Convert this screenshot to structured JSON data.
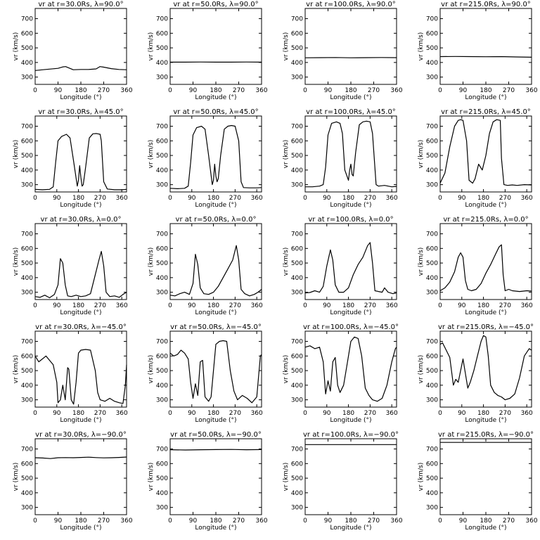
{
  "chart_data": [
    {
      "type": "line",
      "title": "vr at r=30.0Rs, λ=90.0°",
      "xlabel": "Longitude (°)",
      "ylabel": "vr (km/s)",
      "xlim": [
        0,
        360
      ],
      "ylim": [
        250,
        770
      ],
      "xticks": [
        0,
        90,
        180,
        270,
        360
      ],
      "yticks": [
        300,
        400,
        500,
        600,
        700
      ],
      "x": [
        0,
        30,
        60,
        90,
        110,
        120,
        150,
        180,
        210,
        240,
        255,
        270,
        300,
        330,
        360
      ],
      "y": [
        345,
        350,
        355,
        360,
        370,
        372,
        350,
        352,
        352,
        356,
        372,
        368,
        358,
        352,
        350
      ]
    },
    {
      "type": "line",
      "title": "vr at r=50.0Rs, λ=90.0°",
      "xlabel": "Longitude (°)",
      "ylabel": "vr (km/s)",
      "xlim": [
        0,
        360
      ],
      "ylim": [
        250,
        770
      ],
      "xticks": [
        0,
        90,
        180,
        270,
        360
      ],
      "yticks": [
        300,
        400,
        500,
        600,
        700
      ],
      "x": [
        0,
        60,
        120,
        180,
        240,
        300,
        360
      ],
      "y": [
        402,
        402,
        403,
        402,
        402,
        403,
        402
      ]
    },
    {
      "type": "line",
      "title": "vr at r=100.0Rs, λ=90.0°",
      "xlabel": "Longitude (°)",
      "ylabel": "vr (km/s)",
      "xlim": [
        0,
        360
      ],
      "ylim": [
        250,
        770
      ],
      "xticks": [
        0,
        90,
        180,
        270,
        360
      ],
      "yticks": [
        300,
        400,
        500,
        600,
        700
      ],
      "x": [
        0,
        60,
        120,
        180,
        240,
        300,
        360
      ],
      "y": [
        432,
        433,
        434,
        432,
        433,
        434,
        433
      ]
    },
    {
      "type": "line",
      "title": "vr at r=215.0Rs, λ=90.0°",
      "xlabel": "Longitude (°)",
      "ylabel": "vr (km/s)",
      "xlim": [
        0,
        360
      ],
      "ylim": [
        250,
        770
      ],
      "xticks": [
        0,
        90,
        180,
        270,
        360
      ],
      "yticks": [
        300,
        400,
        500,
        600,
        700
      ],
      "x": [
        0,
        60,
        120,
        180,
        240,
        300,
        360
      ],
      "y": [
        440,
        441,
        440,
        439,
        440,
        438,
        436
      ]
    },
    {
      "type": "line",
      "title": "vr at r=30.0Rs, λ=45.0°",
      "xlabel": "Longitude (°)",
      "ylabel": "vr (km/s)",
      "xlim": [
        0,
        380
      ],
      "ylim": [
        250,
        770
      ],
      "xticks": [
        0,
        90,
        180,
        270,
        360
      ],
      "yticks": [
        300,
        400,
        500,
        600,
        700
      ],
      "x": [
        0,
        30,
        60,
        75,
        85,
        95,
        110,
        130,
        145,
        160,
        175,
        180,
        185,
        190,
        195,
        200,
        210,
        225,
        240,
        255,
        270,
        275,
        285,
        300,
        330,
        360,
        380
      ],
      "y": [
        268,
        265,
        268,
        285,
        450,
        600,
        630,
        645,
        620,
        460,
        290,
        330,
        430,
        350,
        290,
        300,
        420,
        620,
        648,
        650,
        645,
        600,
        320,
        270,
        265,
        265,
        268
      ]
    },
    {
      "type": "line",
      "title": "vr at r=50.0Rs, λ=45.0°",
      "xlabel": "Longitude (°)",
      "ylabel": "vr (km/s)",
      "xlim": [
        0,
        380
      ],
      "ylim": [
        250,
        770
      ],
      "xticks": [
        0,
        90,
        180,
        270,
        360
      ],
      "yticks": [
        300,
        400,
        500,
        600,
        700
      ],
      "x": [
        0,
        30,
        60,
        75,
        85,
        95,
        110,
        130,
        145,
        160,
        175,
        180,
        185,
        190,
        195,
        200,
        210,
        225,
        240,
        255,
        270,
        285,
        295,
        305,
        330,
        360,
        380
      ],
      "y": [
        275,
        272,
        275,
        290,
        450,
        640,
        690,
        700,
        680,
        500,
        300,
        330,
        440,
        360,
        320,
        340,
        500,
        680,
        700,
        705,
        700,
        600,
        320,
        280,
        278,
        278,
        280
      ]
    },
    {
      "type": "line",
      "title": "vr at r=100.0Rs, λ=45.0°",
      "xlabel": "Longitude (°)",
      "ylabel": "vr (km/s)",
      "xlim": [
        0,
        380
      ],
      "ylim": [
        250,
        770
      ],
      "xticks": [
        0,
        90,
        180,
        270,
        360
      ],
      "yticks": [
        300,
        400,
        500,
        600,
        700
      ],
      "x": [
        0,
        30,
        60,
        75,
        85,
        95,
        110,
        130,
        145,
        155,
        165,
        180,
        185,
        190,
        195,
        200,
        210,
        225,
        240,
        255,
        270,
        280,
        295,
        305,
        330,
        360,
        380
      ],
      "y": [
        285,
        285,
        290,
        300,
        420,
        640,
        720,
        730,
        720,
        650,
        400,
        330,
        400,
        440,
        370,
        360,
        520,
        710,
        730,
        735,
        730,
        650,
        300,
        290,
        295,
        285,
        288
      ]
    },
    {
      "type": "line",
      "title": "vr at r=215.0Rs, λ=45.0°",
      "xlabel": "Longitude (°)",
      "ylabel": "vr (km/s)",
      "xlim": [
        0,
        380
      ],
      "ylim": [
        250,
        770
      ],
      "xticks": [
        0,
        90,
        180,
        270,
        360
      ],
      "yticks": [
        300,
        400,
        500,
        600,
        700
      ],
      "x": [
        0,
        20,
        40,
        60,
        75,
        85,
        95,
        110,
        120,
        135,
        145,
        160,
        175,
        190,
        205,
        220,
        235,
        250,
        255,
        265,
        280,
        300,
        320,
        350,
        380
      ],
      "y": [
        310,
        380,
        560,
        700,
        740,
        745,
        740,
        600,
        330,
        310,
        340,
        440,
        400,
        500,
        650,
        730,
        745,
        740,
        480,
        300,
        295,
        298,
        295,
        300,
        298
      ]
    },
    {
      "type": "line",
      "title": "vr at r=30.0Rs, λ=0.0°",
      "xlabel": "Longitude (°)",
      "ylabel": "vr (km/s)",
      "xlim": [
        0,
        380
      ],
      "ylim": [
        250,
        770
      ],
      "xticks": [
        0,
        90,
        180,
        270,
        360
      ],
      "yticks": [
        300,
        400,
        500,
        600,
        700
      ],
      "x": [
        0,
        20,
        40,
        60,
        80,
        95,
        105,
        115,
        125,
        135,
        150,
        170,
        190,
        210,
        230,
        250,
        265,
        275,
        285,
        295,
        310,
        330,
        350,
        365,
        380
      ],
      "y": [
        270,
        265,
        280,
        262,
        285,
        350,
        530,
        500,
        350,
        275,
        270,
        280,
        270,
        275,
        290,
        420,
        520,
        580,
        480,
        300,
        270,
        275,
        265,
        285,
        300
      ]
    },
    {
      "type": "line",
      "title": "vr at r=50.0Rs, λ=0.0°",
      "xlabel": "Longitude (°)",
      "ylabel": "vr (km/s)",
      "xlim": [
        0,
        380
      ],
      "ylim": [
        250,
        770
      ],
      "xticks": [
        0,
        90,
        180,
        270,
        360
      ],
      "yticks": [
        300,
        400,
        500,
        600,
        700
      ],
      "x": [
        0,
        20,
        40,
        60,
        80,
        95,
        105,
        115,
        125,
        140,
        160,
        180,
        200,
        220,
        240,
        260,
        275,
        285,
        295,
        310,
        330,
        350,
        365,
        380
      ],
      "y": [
        280,
        275,
        290,
        300,
        285,
        360,
        560,
        490,
        330,
        290,
        285,
        300,
        340,
        400,
        460,
        520,
        620,
        520,
        320,
        290,
        275,
        285,
        300,
        320
      ]
    },
    {
      "type": "line",
      "title": "vr at r=100.0Rs, λ=0.0°",
      "xlabel": "Longitude (°)",
      "ylabel": "vr (km/s)",
      "xlim": [
        0,
        380
      ],
      "ylim": [
        250,
        770
      ],
      "xticks": [
        0,
        90,
        180,
        270,
        360
      ],
      "yticks": [
        300,
        400,
        500,
        600,
        700
      ],
      "x": [
        0,
        20,
        40,
        60,
        75,
        90,
        105,
        115,
        125,
        140,
        160,
        180,
        200,
        220,
        240,
        260,
        270,
        280,
        290,
        305,
        320,
        330,
        345,
        365,
        380
      ],
      "y": [
        295,
        298,
        310,
        300,
        340,
        480,
        590,
        520,
        350,
        300,
        300,
        330,
        420,
        490,
        540,
        620,
        640,
        500,
        310,
        305,
        300,
        330,
        300,
        290,
        295
      ]
    },
    {
      "type": "line",
      "title": "vr at r=215.0Rs, λ=0.0°",
      "xlabel": "Longitude (°)",
      "ylabel": "vr (km/s)",
      "xlim": [
        0,
        380
      ],
      "ylim": [
        250,
        770
      ],
      "xticks": [
        0,
        90,
        180,
        270,
        360
      ],
      "yticks": [
        300,
        400,
        500,
        600,
        700
      ],
      "x": [
        0,
        20,
        40,
        60,
        75,
        85,
        95,
        105,
        115,
        130,
        150,
        170,
        190,
        210,
        230,
        245,
        255,
        262,
        270,
        285,
        300,
        330,
        360,
        380
      ],
      "y": [
        310,
        330,
        370,
        440,
        540,
        570,
        540,
        380,
        320,
        310,
        320,
        360,
        430,
        490,
        560,
        610,
        625,
        420,
        310,
        320,
        310,
        305,
        310,
        308
      ]
    },
    {
      "type": "line",
      "title": "vr at r=30.0Rs, λ=−45.0°",
      "xlabel": "Longitude (°)",
      "ylabel": "vr (km/s)",
      "xlim": [
        0,
        380
      ],
      "ylim": [
        250,
        770
      ],
      "xticks": [
        0,
        90,
        180,
        270,
        360
      ],
      "yticks": [
        300,
        400,
        500,
        600,
        700
      ],
      "x": [
        0,
        15,
        30,
        45,
        60,
        75,
        90,
        95,
        105,
        115,
        125,
        135,
        140,
        150,
        160,
        170,
        180,
        190,
        210,
        230,
        250,
        260,
        270,
        290,
        310,
        330,
        350,
        365,
        375,
        380
      ],
      "y": [
        600,
        560,
        580,
        600,
        570,
        540,
        420,
        280,
        300,
        400,
        300,
        520,
        510,
        300,
        270,
        420,
        620,
        640,
        645,
        640,
        500,
        350,
        300,
        290,
        310,
        290,
        280,
        275,
        400,
        540
      ]
    },
    {
      "type": "line",
      "title": "vr at r=50.0Rs, λ=−45.0°",
      "xlabel": "Longitude (°)",
      "ylabel": "vr (km/s)",
      "xlim": [
        0,
        380
      ],
      "ylim": [
        250,
        770
      ],
      "xticks": [
        0,
        90,
        180,
        270,
        360
      ],
      "yticks": [
        300,
        400,
        500,
        600,
        700
      ],
      "x": [
        0,
        15,
        30,
        45,
        60,
        75,
        85,
        95,
        105,
        115,
        125,
        135,
        145,
        160,
        170,
        180,
        190,
        205,
        220,
        235,
        250,
        265,
        280,
        300,
        320,
        340,
        360,
        375,
        380
      ],
      "y": [
        620,
        600,
        610,
        640,
        620,
        580,
        420,
        310,
        410,
        330,
        560,
        570,
        320,
        290,
        320,
        500,
        680,
        700,
        705,
        700,
        500,
        360,
        300,
        330,
        310,
        280,
        320,
        600,
        610
      ]
    },
    {
      "type": "line",
      "title": "vr at r=100.0Rs, λ=−45.0°",
      "xlabel": "Longitude (°)",
      "ylabel": "vr (km/s)",
      "xlim": [
        0,
        380
      ],
      "ylim": [
        250,
        770
      ],
      "xticks": [
        0,
        90,
        180,
        270,
        360
      ],
      "yticks": [
        300,
        400,
        500,
        600,
        700
      ],
      "x": [
        0,
        20,
        40,
        60,
        75,
        85,
        95,
        105,
        115,
        125,
        135,
        145,
        160,
        175,
        190,
        205,
        220,
        235,
        250,
        265,
        280,
        300,
        320,
        340,
        360,
        375,
        380
      ],
      "y": [
        660,
        670,
        650,
        660,
        560,
        340,
        430,
        360,
        560,
        590,
        400,
        350,
        400,
        550,
        700,
        730,
        720,
        600,
        380,
        330,
        300,
        290,
        310,
        400,
        560,
        650,
        660
      ]
    },
    {
      "type": "line",
      "title": "vr at r=215.0Rs, λ=−45.0°",
      "xlabel": "Longitude (°)",
      "ylabel": "vr (km/s)",
      "xlim": [
        0,
        380
      ],
      "ylim": [
        250,
        770
      ],
      "xticks": [
        0,
        90,
        180,
        270,
        360
      ],
      "yticks": [
        300,
        400,
        500,
        600,
        700
      ],
      "x": [
        0,
        10,
        25,
        40,
        55,
        65,
        75,
        85,
        95,
        105,
        115,
        125,
        140,
        155,
        170,
        180,
        190,
        200,
        210,
        225,
        240,
        255,
        270,
        290,
        310,
        330,
        350,
        370,
        380
      ],
      "y": [
        680,
        690,
        640,
        590,
        400,
        440,
        420,
        500,
        580,
        480,
        380,
        420,
        500,
        600,
        700,
        740,
        730,
        600,
        400,
        350,
        330,
        320,
        300,
        310,
        340,
        450,
        600,
        650,
        640
      ]
    },
    {
      "type": "line",
      "title": "vr at r=30.0Rs, λ=−90.0°",
      "xlabel": "Longitude (°)",
      "ylabel": "vr (km/s)",
      "xlim": [
        0,
        360
      ],
      "ylim": [
        250,
        770
      ],
      "xticks": [
        0,
        90,
        180,
        270,
        360
      ],
      "yticks": [
        300,
        400,
        500,
        600,
        700
      ],
      "x": [
        0,
        30,
        60,
        90,
        120,
        150,
        180,
        210,
        240,
        270,
        300,
        330,
        360
      ],
      "y": [
        640,
        638,
        634,
        640,
        641,
        640,
        642,
        644,
        641,
        639,
        640,
        642,
        645
      ]
    },
    {
      "type": "line",
      "title": "vr at r=50.0Rs, λ=−90.0°",
      "xlabel": "Longitude (°)",
      "ylabel": "vr (km/s)",
      "xlim": [
        0,
        360
      ],
      "ylim": [
        250,
        770
      ],
      "xticks": [
        0,
        90,
        180,
        270,
        360
      ],
      "yticks": [
        300,
        400,
        500,
        600,
        700
      ],
      "x": [
        0,
        60,
        120,
        180,
        240,
        300,
        360
      ],
      "y": [
        695,
        693,
        695,
        696,
        697,
        695,
        696
      ]
    },
    {
      "type": "line",
      "title": "vr at r=100.0Rs, λ=−90.0°",
      "xlabel": "Longitude (°)",
      "ylabel": "vr (km/s)",
      "xlim": [
        0,
        360
      ],
      "ylim": [
        250,
        770
      ],
      "xticks": [
        0,
        90,
        180,
        270,
        360
      ],
      "yticks": [
        300,
        400,
        500,
        600,
        700
      ],
      "x": [
        0,
        60,
        120,
        180,
        240,
        300,
        360
      ],
      "y": [
        730,
        730,
        730,
        730,
        730,
        730,
        730
      ]
    },
    {
      "type": "line",
      "title": "vr at r=215.0Rs, λ=−90.0°",
      "xlabel": "Longitude (°)",
      "ylabel": "vr (km/s)",
      "xlim": [
        0,
        360
      ],
      "ylim": [
        250,
        770
      ],
      "xticks": [
        0,
        90,
        180,
        270,
        360
      ],
      "yticks": [
        300,
        400,
        500,
        600,
        700
      ],
      "x": [
        0,
        60,
        120,
        180,
        240,
        300,
        360
      ],
      "y": [
        745,
        745,
        745,
        745,
        745,
        745,
        745
      ]
    }
  ]
}
